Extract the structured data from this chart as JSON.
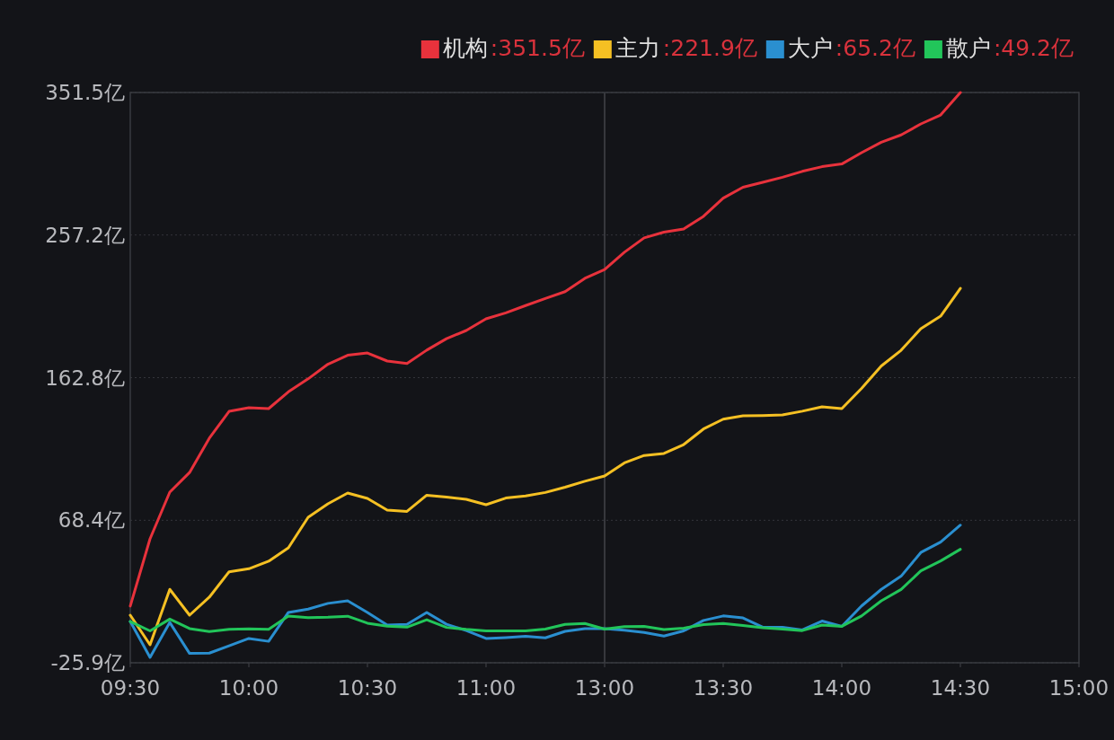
{
  "chart_data": {
    "type": "line",
    "categories": [
      "09:30",
      null,
      null,
      null,
      null,
      null,
      "10:00",
      null,
      null,
      null,
      null,
      null,
      "10:30",
      null,
      null,
      null,
      null,
      null,
      "11:00",
      null,
      null,
      null,
      null,
      null,
      "13:00",
      null,
      null,
      null,
      null,
      null,
      "13:30",
      null,
      null,
      null,
      null,
      null,
      "14:00",
      null,
      null,
      null,
      null,
      null,
      "14:30",
      null,
      null,
      null,
      null,
      null,
      "15:00"
    ],
    "ylim": [
      -25.9,
      351.5
    ],
    "yticks": [
      {
        "value": -25.9,
        "label": "-25.9亿"
      },
      {
        "value": 68.4,
        "label": "68.4亿"
      },
      {
        "value": 162.8,
        "label": "162.8亿"
      },
      {
        "value": 257.2,
        "label": "257.2亿"
      },
      {
        "value": 351.5,
        "label": "351.5亿"
      }
    ],
    "grid": "y",
    "legend": "top right",
    "ref_lines": [
      {
        "axis": "x",
        "value": "13:00",
        "color": "#44454a"
      }
    ],
    "annotations": [
      ":351.5亿",
      ":221.9亿",
      ":65.2亿",
      ":49.2亿"
    ],
    "series": [
      {
        "name": "机构",
        "color": "#e8323c",
        "values": [
          11.6,
          56.1,
          87.0,
          100,
          122.7,
          140.5,
          142.9,
          142.3,
          153.4,
          162,
          171.7,
          177.6,
          179.1,
          173.8,
          172.2,
          181,
          188.6,
          194.0,
          201.7,
          205.7,
          210.5,
          215.2,
          219.7,
          228.5,
          234.4,
          245.8,
          255.3,
          259.1,
          261.2,
          269.5,
          281.6,
          288.8,
          292.1,
          295.4,
          299.3,
          302.4,
          304.2,
          311.7,
          318.6,
          323.4,
          330.7,
          336.6,
          351.5,
          null,
          null,
          null,
          null,
          null,
          null
        ]
      },
      {
        "name": "主力",
        "color": "#f5c023",
        "values": [
          5.6,
          -14.0,
          22.7,
          5.6,
          17.5,
          34.3,
          36.3,
          41.3,
          50.2,
          70.4,
          79.3,
          86.4,
          82.9,
          75.1,
          74.3,
          85,
          83.7,
          82.3,
          78.7,
          83.1,
          84.5,
          86.8,
          90.3,
          94.2,
          97.7,
          106.4,
          111.3,
          112.6,
          118.5,
          128.8,
          135.3,
          137.5,
          137.7,
          138.1,
          140.6,
          143.5,
          142.3,
          155.7,
          170.5,
          180.9,
          195.2,
          203.5,
          221.9,
          null,
          null,
          null,
          null,
          null,
          null
        ]
      },
      {
        "name": "大户",
        "color": "#2a8fd0",
        "values": [
          1.4,
          -22.3,
          0.8,
          -19.7,
          -19.5,
          -14.7,
          -9.8,
          -11.7,
          7.4,
          9.6,
          13.4,
          15.1,
          7.4,
          -0.9,
          -0.5,
          7.4,
          -0.4,
          -4.6,
          -9.8,
          -9.2,
          -8.4,
          -9.4,
          -5.1,
          -3.3,
          -3.3,
          -4.4,
          -5.8,
          -8.2,
          -4.8,
          2.1,
          5.1,
          3.8,
          -2.4,
          -2.4,
          -4.2,
          1.7,
          -1.8,
          11.7,
          22.7,
          31.4,
          47.1,
          54,
          65.2,
          null,
          null,
          null,
          null,
          null,
          null
        ]
      },
      {
        "name": "散户",
        "color": "#22c55a",
        "values": [
          1.4,
          -4.8,
          3.0,
          -3.3,
          -5.2,
          -3.8,
          -3.5,
          -3.8,
          5.0,
          4.0,
          4.3,
          4.9,
          0.3,
          -1.7,
          -2.3,
          2.6,
          -2.5,
          -3.8,
          -4.8,
          -4.8,
          -4.8,
          -3.6,
          -0.5,
          0.1,
          -3.6,
          -2.0,
          -1.8,
          -3.9,
          -3.0,
          -0.7,
          0.1,
          -1.3,
          -2.7,
          -3.6,
          -4.6,
          -0.9,
          -1.8,
          5.1,
          15.1,
          22.6,
          34.9,
          41.5,
          49.2,
          null,
          null,
          null,
          null,
          null,
          null
        ]
      }
    ]
  }
}
